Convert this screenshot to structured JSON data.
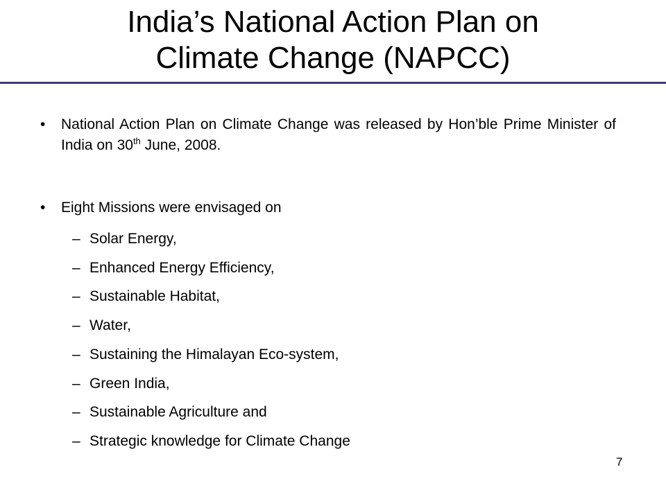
{
  "title": {
    "line1": "India’s National Action Plan on",
    "line2": "Climate Change (NAPCC)"
  },
  "bullets": {
    "first": {
      "symbol": "•",
      "text_before": "National Action Plan on Climate Change was released by Hon’ble Prime Minister of India on 30",
      "superscript": "th",
      "text_after": " June, 2008."
    },
    "second": {
      "symbol": "•",
      "text": "Eight Missions were envisaged on"
    }
  },
  "missions": [
    {
      "dash": "–",
      "text": "Solar Energy,"
    },
    {
      "dash": "–",
      "text": "Enhanced Energy Efficiency,"
    },
    {
      "dash": "–",
      "text": "Sustainable Habitat,"
    },
    {
      "dash": "–",
      "text": "Water,"
    },
    {
      "dash": "–",
      "text": "Sustaining the Himalayan Eco-system,"
    },
    {
      "dash": "–",
      "text": "Green India,"
    },
    {
      "dash": "–",
      "text": "Sustainable Agriculture and"
    },
    {
      "dash": "–",
      "text": "Strategic knowledge for Climate Change"
    }
  ],
  "page_number": "7",
  "colors": {
    "title_rule": "#3b3b7a"
  }
}
